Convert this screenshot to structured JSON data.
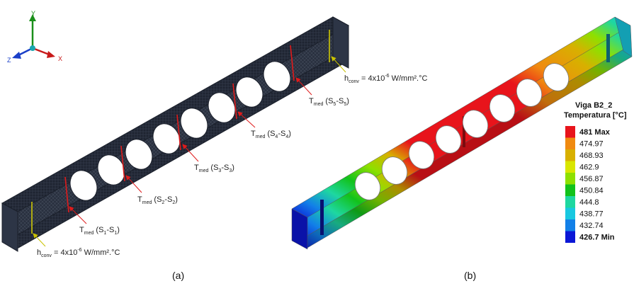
{
  "axes_triad": {
    "y": "Y",
    "z": "Z",
    "x": "X"
  },
  "panel_a": {
    "caption": "(a)",
    "hconv_right": {
      "main": "h",
      "sub": "conv",
      "text": " = 4x10",
      "sup": "-6",
      "unit": " W/mm².°C"
    },
    "hconv_left": {
      "main": "h",
      "sub": "conv",
      "text": " = 4x10",
      "sup": "-6",
      "unit": " W/mm².°C"
    },
    "sections": [
      {
        "main": "T",
        "sub": "med",
        "text": " (S",
        "s1": "1",
        "mid": "-S",
        "s2": "1",
        "end": ")"
      },
      {
        "main": "T",
        "sub": "med",
        "text": " (S",
        "s1": "2",
        "mid": "-S",
        "s2": "2",
        "end": ")"
      },
      {
        "main": "T",
        "sub": "med",
        "text": " (S",
        "s1": "3",
        "mid": "-S",
        "s2": "3",
        "end": ")"
      },
      {
        "main": "T",
        "sub": "med",
        "text": " (S",
        "s1": "4",
        "mid": "-S",
        "s2": "4",
        "end": ")"
      },
      {
        "main": "T",
        "sub": "med",
        "text": " (S",
        "s1": "5",
        "mid": "-S",
        "s2": "5",
        "end": ")"
      }
    ]
  },
  "panel_b": {
    "caption": "(b)",
    "legend": {
      "title_line1": "Viga B2_2",
      "title_line2": "Temperatura [°C]",
      "entries": [
        {
          "label": "481 Max",
          "color": "#e8141b",
          "bold": true
        },
        {
          "label": "474.97",
          "color": "#f08a10",
          "bold": false
        },
        {
          "label": "468.93",
          "color": "#d8b000",
          "bold": false
        },
        {
          "label": "462.9",
          "color": "#d9e600",
          "bold": false
        },
        {
          "label": "456.87",
          "color": "#8ee000",
          "bold": false
        },
        {
          "label": "450.84",
          "color": "#12c21b",
          "bold": false
        },
        {
          "label": "444.8",
          "color": "#1ed7a0",
          "bold": false
        },
        {
          "label": "438.77",
          "color": "#18c8e0",
          "bold": false
        },
        {
          "label": "432.74",
          "color": "#1280e8",
          "bold": false
        },
        {
          "label": "426.7 Min",
          "color": "#0b17d6",
          "bold": true
        }
      ]
    }
  }
}
